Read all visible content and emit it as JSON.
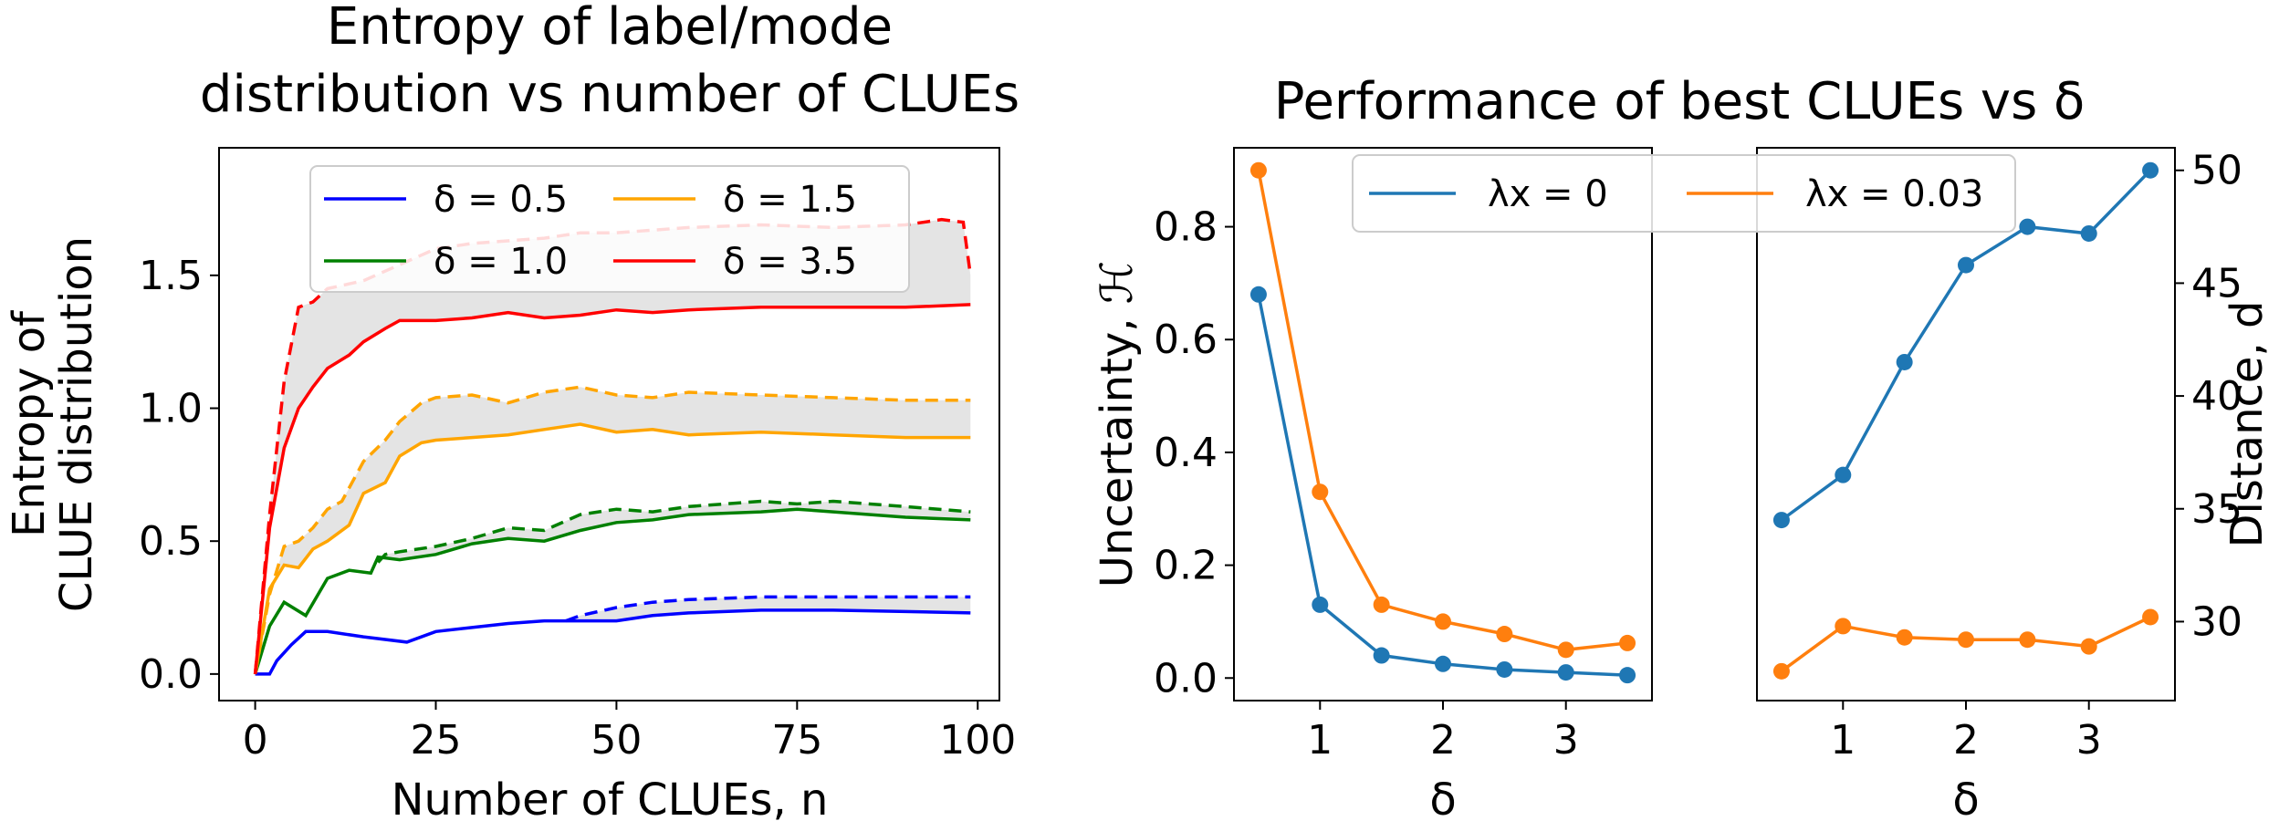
{
  "chart_data": [
    {
      "type": "line",
      "title_lines": [
        "Entropy of label/mode",
        "distribution vs number of CLUEs"
      ],
      "xlabel": "Number of CLUEs, n",
      "ylabel_lines": [
        "Entropy of",
        "CLUE distribution"
      ],
      "xlim": [
        -5,
        103
      ],
      "ylim": [
        -0.1,
        1.98
      ],
      "xticks": [
        0,
        25,
        50,
        75,
        100
      ],
      "xtick_labels": [
        "0",
        "25",
        "50",
        "75",
        "100"
      ],
      "yticks": [
        0.0,
        0.5,
        1.0,
        1.5
      ],
      "ytick_labels": [
        "0.0",
        "0.5",
        "1.0",
        "1.5"
      ],
      "legend_position": "upper-center",
      "shaded_band": "between solid and dashed line of each series",
      "series": [
        {
          "name": "δ = 0.5",
          "color": "#0000ff",
          "solid": [
            [
              0,
              0
            ],
            [
              2,
              0
            ],
            [
              3,
              0.05
            ],
            [
              5,
              0.11
            ],
            [
              7,
              0.16
            ],
            [
              10,
              0.16
            ],
            [
              15,
              0.14
            ],
            [
              21,
              0.12
            ],
            [
              25,
              0.16
            ],
            [
              30,
              0.175
            ],
            [
              35,
              0.19
            ],
            [
              40,
              0.2
            ],
            [
              50,
              0.2
            ],
            [
              55,
              0.22
            ],
            [
              60,
              0.23
            ],
            [
              70,
              0.24
            ],
            [
              80,
              0.24
            ],
            [
              90,
              0.235
            ],
            [
              99,
              0.23
            ]
          ],
          "dashed": [
            [
              43,
              0.2
            ],
            [
              45,
              0.22
            ],
            [
              50,
              0.25
            ],
            [
              55,
              0.27
            ],
            [
              60,
              0.28
            ],
            [
              70,
              0.29
            ],
            [
              80,
              0.29
            ],
            [
              90,
              0.29
            ],
            [
              99,
              0.29
            ]
          ]
        },
        {
          "name": "δ = 1.0",
          "color": "#008000",
          "solid": [
            [
              0,
              0
            ],
            [
              2,
              0.18
            ],
            [
              4,
              0.27
            ],
            [
              7,
              0.22
            ],
            [
              10,
              0.36
            ],
            [
              13,
              0.39
            ],
            [
              16,
              0.38
            ],
            [
              17,
              0.44
            ],
            [
              20,
              0.43
            ],
            [
              25,
              0.45
            ],
            [
              30,
              0.49
            ],
            [
              35,
              0.51
            ],
            [
              40,
              0.5
            ],
            [
              45,
              0.54
            ],
            [
              50,
              0.57
            ],
            [
              55,
              0.58
            ],
            [
              60,
              0.6
            ],
            [
              70,
              0.61
            ],
            [
              75,
              0.62
            ],
            [
              80,
              0.61
            ],
            [
              90,
              0.59
            ],
            [
              99,
              0.58
            ]
          ],
          "dashed": [
            [
              17,
              0.42
            ],
            [
              18,
              0.45
            ],
            [
              20,
              0.46
            ],
            [
              25,
              0.48
            ],
            [
              30,
              0.51
            ],
            [
              35,
              0.55
            ],
            [
              40,
              0.54
            ],
            [
              45,
              0.6
            ],
            [
              50,
              0.62
            ],
            [
              55,
              0.61
            ],
            [
              60,
              0.63
            ],
            [
              70,
              0.65
            ],
            [
              75,
              0.64
            ],
            [
              80,
              0.65
            ],
            [
              90,
              0.63
            ],
            [
              99,
              0.61
            ]
          ]
        },
        {
          "name": "δ = 1.5",
          "color": "#ffa500",
          "solid": [
            [
              0,
              0
            ],
            [
              2,
              0.32
            ],
            [
              4,
              0.41
            ],
            [
              6,
              0.4
            ],
            [
              8,
              0.47
            ],
            [
              10,
              0.5
            ],
            [
              13,
              0.56
            ],
            [
              15,
              0.68
            ],
            [
              18,
              0.72
            ],
            [
              20,
              0.82
            ],
            [
              23,
              0.87
            ],
            [
              25,
              0.88
            ],
            [
              30,
              0.89
            ],
            [
              35,
              0.9
            ],
            [
              40,
              0.92
            ],
            [
              45,
              0.94
            ],
            [
              50,
              0.91
            ],
            [
              55,
              0.92
            ],
            [
              60,
              0.9
            ],
            [
              70,
              0.91
            ],
            [
              80,
              0.9
            ],
            [
              90,
              0.89
            ],
            [
              99,
              0.89
            ]
          ],
          "dashed": [
            [
              0,
              0
            ],
            [
              2,
              0.3
            ],
            [
              4,
              0.48
            ],
            [
              6,
              0.5
            ],
            [
              8,
              0.55
            ],
            [
              10,
              0.62
            ],
            [
              12,
              0.65
            ],
            [
              15,
              0.8
            ],
            [
              18,
              0.88
            ],
            [
              20,
              0.95
            ],
            [
              23,
              1.02
            ],
            [
              25,
              1.04
            ],
            [
              30,
              1.05
            ],
            [
              35,
              1.02
            ],
            [
              40,
              1.06
            ],
            [
              45,
              1.08
            ],
            [
              50,
              1.05
            ],
            [
              55,
              1.04
            ],
            [
              60,
              1.06
            ],
            [
              70,
              1.05
            ],
            [
              80,
              1.04
            ],
            [
              90,
              1.03
            ],
            [
              99,
              1.03
            ]
          ]
        },
        {
          "name": "δ = 3.5",
          "color": "#ff0000",
          "solid": [
            [
              0,
              0
            ],
            [
              2,
              0.55
            ],
            [
              4,
              0.85
            ],
            [
              6,
              1.0
            ],
            [
              8,
              1.08
            ],
            [
              10,
              1.15
            ],
            [
              13,
              1.2
            ],
            [
              15,
              1.25
            ],
            [
              18,
              1.3
            ],
            [
              20,
              1.33
            ],
            [
              25,
              1.33
            ],
            [
              30,
              1.34
            ],
            [
              35,
              1.36
            ],
            [
              40,
              1.34
            ],
            [
              45,
              1.35
            ],
            [
              50,
              1.37
            ],
            [
              55,
              1.36
            ],
            [
              60,
              1.37
            ],
            [
              70,
              1.38
            ],
            [
              80,
              1.38
            ],
            [
              90,
              1.38
            ],
            [
              99,
              1.39
            ]
          ],
          "dashed": [
            [
              0,
              0
            ],
            [
              2,
              0.6
            ],
            [
              4,
              1.1
            ],
            [
              6,
              1.38
            ],
            [
              8,
              1.4
            ],
            [
              10,
              1.45
            ],
            [
              15,
              1.48
            ],
            [
              20,
              1.54
            ],
            [
              25,
              1.6
            ],
            [
              30,
              1.62
            ],
            [
              35,
              1.63
            ],
            [
              40,
              1.64
            ],
            [
              45,
              1.66
            ],
            [
              50,
              1.66
            ],
            [
              55,
              1.67
            ],
            [
              60,
              1.68
            ],
            [
              70,
              1.69
            ],
            [
              80,
              1.68
            ],
            [
              90,
              1.69
            ],
            [
              95,
              1.71
            ],
            [
              98,
              1.7
            ],
            [
              99,
              1.5
            ]
          ]
        }
      ]
    },
    {
      "type": "line",
      "title": "Performance of best CLUEs vs δ",
      "legend_position": "upper-center",
      "legend": [
        {
          "label": "λx = 0",
          "color": "#1f77b4"
        },
        {
          "label": "λx = 0.03",
          "color": "#ff7f0e"
        }
      ],
      "panels": [
        {
          "xlabel": "δ",
          "ylabel": "Uncertainty, ℋ",
          "ylabel_side": "left",
          "xlim": [
            0.3,
            3.7
          ],
          "ylim": [
            -0.04,
            0.94
          ],
          "xticks": [
            1,
            2,
            3
          ],
          "xtick_labels": [
            "1",
            "2",
            "3"
          ],
          "yticks": [
            0.0,
            0.2,
            0.4,
            0.6,
            0.8
          ],
          "ytick_labels": [
            "0.0",
            "0.2",
            "0.4",
            "0.6",
            "0.8"
          ],
          "x": [
            0.5,
            1.0,
            1.5,
            2.0,
            2.5,
            3.0,
            3.5
          ],
          "series": [
            {
              "legend_index": 0,
              "color": "#1f77b4",
              "values": [
                0.68,
                0.13,
                0.04,
                0.025,
                0.015,
                0.01,
                0.005
              ]
            },
            {
              "legend_index": 1,
              "color": "#ff7f0e",
              "values": [
                0.9,
                0.33,
                0.13,
                0.1,
                0.078,
                0.05,
                0.062
              ]
            }
          ]
        },
        {
          "xlabel": "δ",
          "ylabel": "Distance, d",
          "ylabel_side": "right",
          "xlim": [
            0.3,
            3.7
          ],
          "ylim": [
            26.5,
            51
          ],
          "xticks": [
            1,
            2,
            3
          ],
          "xtick_labels": [
            "1",
            "2",
            "3"
          ],
          "yticks": [
            30,
            35,
            40,
            45,
            50
          ],
          "ytick_labels": [
            "30",
            "35",
            "40",
            "45",
            "50"
          ],
          "x": [
            0.5,
            1.0,
            1.5,
            2.0,
            2.5,
            3.0,
            3.5
          ],
          "series": [
            {
              "legend_index": 0,
              "color": "#1f77b4",
              "values": [
                34.5,
                36.5,
                41.5,
                45.8,
                47.5,
                47.2,
                50.0
              ]
            },
            {
              "legend_index": 1,
              "color": "#ff7f0e",
              "values": [
                27.8,
                29.8,
                29.3,
                29.2,
                29.2,
                28.9,
                30.2
              ]
            }
          ]
        }
      ]
    }
  ]
}
